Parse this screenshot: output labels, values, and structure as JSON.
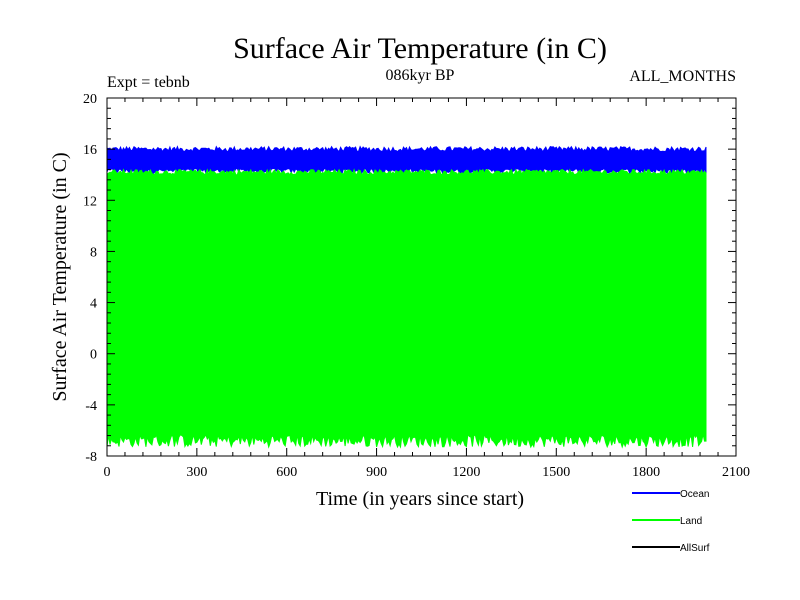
{
  "chart_data": {
    "type": "line",
    "title": "Surface Air Temperature (in C)",
    "subtitle": "086kyr BP",
    "left_label": "Expt = tebnb",
    "right_label": "ALL_MONTHS",
    "xlabel": "Time (in years since start)",
    "ylabel": "Surface Air Temperature (in C)",
    "xlim": [
      0,
      2100
    ],
    "ylim": [
      -8,
      20
    ],
    "x_ticks": [
      0,
      300,
      600,
      900,
      1200,
      1500,
      1800,
      2100
    ],
    "y_ticks": [
      -8,
      -4,
      0,
      4,
      8,
      12,
      16,
      20
    ],
    "x_range_data": [
      0,
      2000
    ],
    "series": [
      {
        "name": "Ocean",
        "color": "#0000ff",
        "band_min": 13.9,
        "band_max": 16.2,
        "mean": 15.0
      },
      {
        "name": "Land",
        "color": "#00ff00",
        "band_min": -7.2,
        "band_max": 14.4,
        "mean": 14.1
      },
      {
        "name": "AllSurf",
        "color": "#000000",
        "band_min": null,
        "band_max": null,
        "mean": null
      }
    ]
  }
}
